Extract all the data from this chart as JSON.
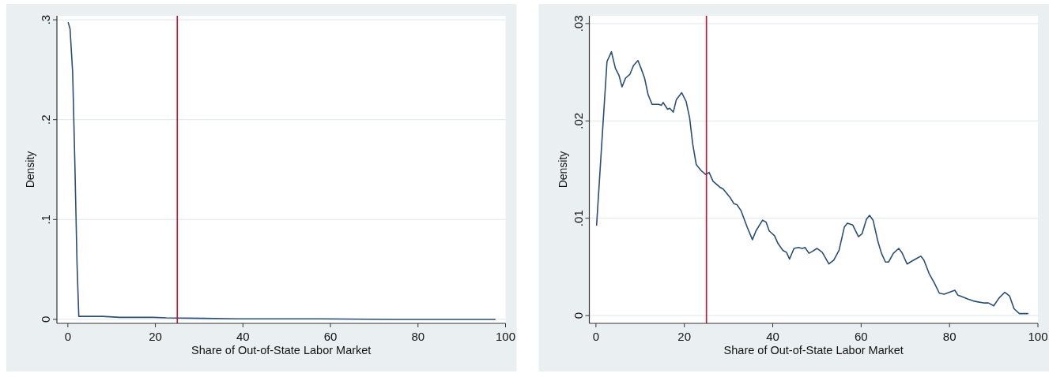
{
  "chart_data": [
    {
      "type": "line",
      "xlabel": "Share of Out-of-State Labor Market",
      "ylabel": "Density",
      "xlim": [
        -2.5,
        100
      ],
      "xticks": [
        0,
        20,
        40,
        60,
        80,
        100
      ],
      "ylim": [
        -0.004,
        0.304
      ],
      "yticks": [
        {
          "value": 0,
          "label": "0"
        },
        {
          "value": 0.1,
          "label": ".1"
        },
        {
          "value": 0.2,
          "label": ".2"
        },
        {
          "value": 0.3,
          "label": ".3"
        }
      ],
      "grid": "y",
      "ref_lines": [
        {
          "axis": "x",
          "value": 25,
          "color": "#c8102e"
        }
      ],
      "series": [
        {
          "color": "#2b4f74",
          "x": [
            0.1,
            0.5,
            1.1,
            1.6,
            2.1,
            2.5,
            8,
            11.8,
            19.5,
            22.5,
            31,
            38.6,
            57.8,
            74.6,
            84.6,
            97.6
          ],
          "values": [
            0.297,
            0.291,
            0.247,
            0.156,
            0.055,
            0.003,
            0.003,
            0.002,
            0.002,
            0.0015,
            0.001,
            0.0005,
            0.0005,
            0,
            0,
            0
          ]
        }
      ]
    },
    {
      "type": "line",
      "xlabel": "Share of Out-of-State Labor Market",
      "ylabel": "Density",
      "xlim": [
        -1.5,
        100
      ],
      "xticks": [
        0,
        20,
        40,
        60,
        80,
        100
      ],
      "ylim": [
        -0.0008,
        0.0308
      ],
      "yticks": [
        {
          "value": 0,
          "label": "0"
        },
        {
          "value": 0.01,
          "label": ".01"
        },
        {
          "value": 0.02,
          "label": ".02"
        },
        {
          "value": 0.03,
          "label": ".03"
        }
      ],
      "grid": "y",
      "ref_lines": [
        {
          "axis": "x",
          "value": 25,
          "color": "#c8102e"
        }
      ],
      "series": [
        {
          "color": "#2b4f74",
          "x": [
            0.15,
            1.5,
            2.5,
            3.5,
            4.4,
            5.2,
            5.9,
            6.7,
            7.7,
            8.5,
            9.5,
            10.2,
            11,
            11.8,
            12.7,
            14.2,
            14.8,
            15.2,
            16.2,
            16.7,
            17.5,
            18.2,
            19.4,
            20.4,
            21.2,
            21.9,
            22.7,
            23.8,
            24.8,
            25.6,
            26.5,
            28,
            28.8,
            30.4,
            31.2,
            31.9,
            32.8,
            34.2,
            35.4,
            36.2,
            37.7,
            38.5,
            39.2,
            40.4,
            41.2,
            42.3,
            43.1,
            43.8,
            44.8,
            45.8,
            46.7,
            47.3,
            48.2,
            49,
            50,
            51.2,
            52.7,
            53.8,
            55,
            56.2,
            56.9,
            58.1,
            59.4,
            60.2,
            61.2,
            61.9,
            62.7,
            63.8,
            64.6,
            65.5,
            66.2,
            67.3,
            68.5,
            69.2,
            70.4,
            71.5,
            72.7,
            73.5,
            74.2,
            75.4,
            76.5,
            77.7,
            78.8,
            80,
            81.2,
            81.9,
            83.1,
            84.2,
            85.4,
            86.5,
            87.7,
            88.8,
            90,
            91.2,
            92.5,
            93.6,
            94.6,
            95.8,
            96.9,
            97.7
          ],
          "values": [
            0.0093,
            0.019,
            0.0261,
            0.0271,
            0.0254,
            0.0247,
            0.0235,
            0.0244,
            0.0248,
            0.0257,
            0.0262,
            0.0254,
            0.0244,
            0.0227,
            0.0217,
            0.0217,
            0.0216,
            0.0219,
            0.0212,
            0.0213,
            0.0209,
            0.0222,
            0.0229,
            0.022,
            0.0203,
            0.0176,
            0.0155,
            0.0149,
            0.0145,
            0.0147,
            0.0138,
            0.0132,
            0.013,
            0.0121,
            0.0115,
            0.0114,
            0.0108,
            0.0091,
            0.0078,
            0.0087,
            0.0098,
            0.0096,
            0.0087,
            0.0082,
            0.0074,
            0.0067,
            0.0065,
            0.0058,
            0.0069,
            0.007,
            0.0069,
            0.007,
            0.0064,
            0.0066,
            0.0069,
            0.0065,
            0.0053,
            0.0057,
            0.0067,
            0.0091,
            0.0095,
            0.0093,
            0.0081,
            0.0084,
            0.0099,
            0.0103,
            0.0098,
            0.0076,
            0.0064,
            0.0055,
            0.0055,
            0.0064,
            0.0069,
            0.0065,
            0.0053,
            0.0056,
            0.0059,
            0.0061,
            0.0057,
            0.0043,
            0.0034,
            0.0023,
            0.0022,
            0.0024,
            0.0026,
            0.0021,
            0.0019,
            0.0017,
            0.0015,
            0.0014,
            0.0013,
            0.0013,
            0.001,
            0.0018,
            0.0024,
            0.002,
            0.0007,
            0.0002,
            0.0002,
            0.0002
          ]
        }
      ]
    }
  ]
}
